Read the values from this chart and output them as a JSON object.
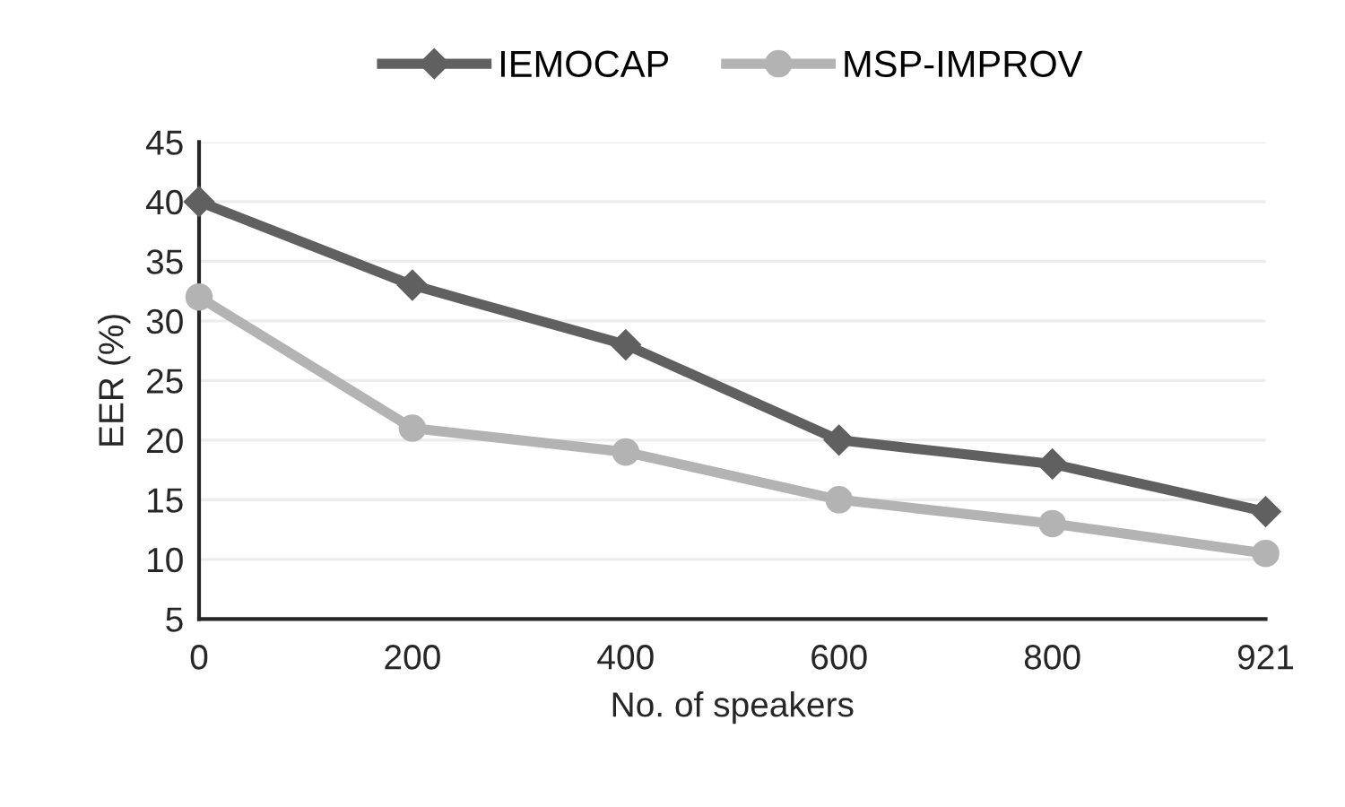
{
  "chart_data": {
    "type": "line",
    "xlabel": "No. of speakers",
    "ylabel": "EER (%)",
    "categories": [
      "0",
      "200",
      "400",
      "600",
      "800",
      "921"
    ],
    "series": [
      {
        "name": "IEMOCAP",
        "color": "#606060",
        "marker": "diamond",
        "values": [
          40,
          33,
          28,
          20,
          18,
          14
        ]
      },
      {
        "name": "MSP-IMPROV",
        "color": "#b3b3b3",
        "marker": "circle",
        "values": [
          32,
          21,
          19,
          15,
          13,
          10.5
        ]
      }
    ],
    "ylim": [
      5,
      45
    ],
    "yticks": [
      5,
      10,
      15,
      20,
      25,
      30,
      35,
      40,
      45
    ],
    "grid": "y",
    "legend": "top",
    "line_style": "solid"
  }
}
